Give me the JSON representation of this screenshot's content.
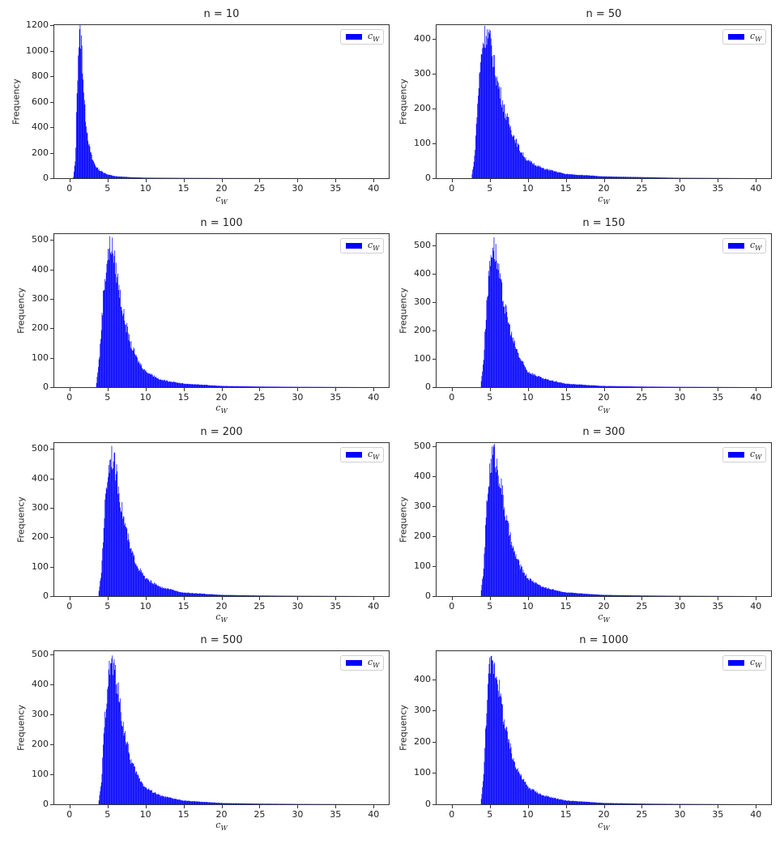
{
  "figure": {
    "bar_color": "#0000ff",
    "ylabel": "Frequency",
    "xlabel": "c_W",
    "legend_label": "c_W"
  },
  "chart_data": [
    {
      "type": "bar",
      "title": "n = 10",
      "n": 10,
      "xlabel": "c_W",
      "ylabel": "Frequency",
      "xlim": [
        -2,
        42
      ],
      "ylim": [
        0,
        1200
      ],
      "xticks": [
        0,
        5,
        10,
        15,
        20,
        25,
        30,
        35,
        40
      ],
      "yticks": [
        0,
        200,
        400,
        600,
        800,
        1000,
        1200
      ],
      "legend": [
        "c_W"
      ],
      "legend_position": "upper right",
      "x": [
        0.5,
        0.8,
        1.0,
        1.2,
        1.4,
        1.6,
        1.8,
        2.0,
        2.3,
        2.6,
        3.0,
        3.5,
        4.0,
        5.0,
        6.0,
        8.0,
        10.0,
        15.0,
        20.0,
        40.0
      ],
      "values": [
        0,
        150,
        700,
        1050,
        1140,
        1050,
        800,
        550,
        380,
        250,
        150,
        90,
        60,
        30,
        15,
        8,
        4,
        2,
        1,
        0
      ]
    },
    {
      "type": "bar",
      "title": "n = 50",
      "n": 50,
      "xlabel": "c_W",
      "ylabel": "Frequency",
      "xlim": [
        -2,
        42
      ],
      "ylim": [
        0,
        440
      ],
      "xticks": [
        0,
        5,
        10,
        15,
        20,
        25,
        30,
        35,
        40
      ],
      "yticks": [
        0,
        100,
        200,
        300,
        400
      ],
      "legend": [
        "c_W"
      ],
      "legend_position": "upper right",
      "x": [
        2.6,
        3.0,
        3.5,
        4.0,
        4.5,
        5.0,
        5.5,
        6.0,
        7.0,
        8.0,
        9.0,
        10.0,
        12.0,
        15.0,
        20.0,
        25.0,
        30.0,
        40.0
      ],
      "values": [
        0,
        60,
        250,
        380,
        420,
        400,
        340,
        280,
        190,
        130,
        80,
        50,
        28,
        12,
        5,
        3,
        1,
        0
      ]
    },
    {
      "type": "bar",
      "title": "n = 100",
      "n": 100,
      "xlabel": "c_W",
      "ylabel": "Frequency",
      "xlim": [
        -2,
        42
      ],
      "ylim": [
        0,
        520
      ],
      "xticks": [
        0,
        5,
        10,
        15,
        20,
        25,
        30,
        35,
        40
      ],
      "yticks": [
        0,
        100,
        200,
        300,
        400,
        500
      ],
      "legend": [
        "c_W"
      ],
      "legend_position": "upper right",
      "x": [
        3.5,
        4.0,
        4.5,
        5.0,
        5.5,
        6.0,
        6.5,
        7.0,
        8.0,
        9.0,
        10.0,
        12.0,
        15.0,
        20.0,
        25.0,
        30.0,
        40.0
      ],
      "values": [
        0,
        120,
        330,
        440,
        490,
        420,
        340,
        260,
        150,
        90,
        55,
        25,
        12,
        4,
        2,
        1,
        0
      ]
    },
    {
      "type": "bar",
      "title": "n = 150",
      "n": 150,
      "xlabel": "c_W",
      "ylabel": "Frequency",
      "xlim": [
        -2,
        42
      ],
      "ylim": [
        0,
        540
      ],
      "xticks": [
        0,
        5,
        10,
        15,
        20,
        25,
        30,
        35,
        40
      ],
      "yticks": [
        0,
        100,
        200,
        300,
        400,
        500
      ],
      "legend": [
        "c_W"
      ],
      "legend_position": "upper right",
      "x": [
        3.8,
        4.2,
        4.6,
        5.0,
        5.4,
        5.8,
        6.3,
        7.0,
        8.0,
        9.0,
        10.0,
        12.0,
        15.0,
        20.0,
        25.0,
        30.0,
        40.0
      ],
      "values": [
        0,
        100,
        300,
        430,
        510,
        470,
        380,
        280,
        170,
        100,
        55,
        30,
        12,
        4,
        2,
        1,
        0
      ]
    },
    {
      "type": "bar",
      "title": "n = 200",
      "n": 200,
      "xlabel": "c_W",
      "ylabel": "Frequency",
      "xlim": [
        -2,
        42
      ],
      "ylim": [
        0,
        520
      ],
      "xticks": [
        0,
        5,
        10,
        15,
        20,
        25,
        30,
        35,
        40
      ],
      "yticks": [
        0,
        100,
        200,
        300,
        400,
        500
      ],
      "legend": [
        "c_W"
      ],
      "legend_position": "upper right",
      "x": [
        3.8,
        4.2,
        4.6,
        5.0,
        5.5,
        6.0,
        6.5,
        7.0,
        8.0,
        9.0,
        10.0,
        12.0,
        15.0,
        20.0,
        25.0,
        30.0,
        40.0
      ],
      "values": [
        0,
        80,
        280,
        410,
        490,
        440,
        360,
        280,
        160,
        100,
        60,
        30,
        12,
        4,
        2,
        1,
        0
      ]
    },
    {
      "type": "bar",
      "title": "n = 300",
      "n": 300,
      "xlabel": "c_W",
      "ylabel": "Frequency",
      "xlim": [
        -2,
        42
      ],
      "ylim": [
        0,
        510
      ],
      "xticks": [
        0,
        5,
        10,
        15,
        20,
        25,
        30,
        35,
        40
      ],
      "yticks": [
        0,
        100,
        200,
        300,
        400,
        500
      ],
      "legend": [
        "c_W"
      ],
      "legend_position": "upper right",
      "x": [
        3.8,
        4.2,
        4.6,
        5.0,
        5.5,
        6.0,
        6.5,
        7.0,
        8.0,
        9.0,
        10.0,
        12.0,
        15.0,
        20.0,
        25.0,
        30.0,
        40.0
      ],
      "values": [
        0,
        90,
        300,
        420,
        485,
        430,
        370,
        280,
        160,
        100,
        60,
        30,
        12,
        4,
        2,
        1,
        0
      ]
    },
    {
      "type": "bar",
      "title": "n = 500",
      "n": 500,
      "xlabel": "c_W",
      "ylabel": "Frequency",
      "xlim": [
        -2,
        42
      ],
      "ylim": [
        0,
        510
      ],
      "xticks": [
        0,
        5,
        10,
        15,
        20,
        25,
        30,
        35,
        40
      ],
      "yticks": [
        0,
        100,
        200,
        300,
        400,
        500
      ],
      "legend": [
        "c_W"
      ],
      "legend_position": "upper right",
      "x": [
        3.8,
        4.2,
        4.6,
        5.0,
        5.5,
        6.0,
        6.5,
        7.0,
        8.0,
        9.0,
        10.0,
        12.0,
        15.0,
        20.0,
        25.0,
        30.0,
        40.0
      ],
      "values": [
        0,
        70,
        260,
        400,
        480,
        440,
        360,
        270,
        150,
        95,
        55,
        28,
        12,
        4,
        2,
        1,
        0
      ]
    },
    {
      "type": "bar",
      "title": "n = 1000",
      "n": 1000,
      "xlabel": "c_W",
      "ylabel": "Frequency",
      "xlim": [
        -2,
        42
      ],
      "ylim": [
        0,
        490
      ],
      "xticks": [
        0,
        5,
        10,
        15,
        20,
        25,
        30,
        35,
        40
      ],
      "yticks": [
        0,
        100,
        200,
        300,
        400
      ],
      "legend": [
        "c_W"
      ],
      "legend_position": "upper right",
      "x": [
        3.8,
        4.2,
        4.6,
        5.0,
        5.5,
        6.0,
        6.5,
        7.0,
        8.0,
        9.0,
        10.0,
        12.0,
        15.0,
        20.0,
        25.0,
        30.0,
        40.0
      ],
      "values": [
        0,
        90,
        320,
        440,
        450,
        410,
        330,
        250,
        150,
        95,
        55,
        28,
        12,
        4,
        2,
        1,
        0
      ]
    }
  ]
}
